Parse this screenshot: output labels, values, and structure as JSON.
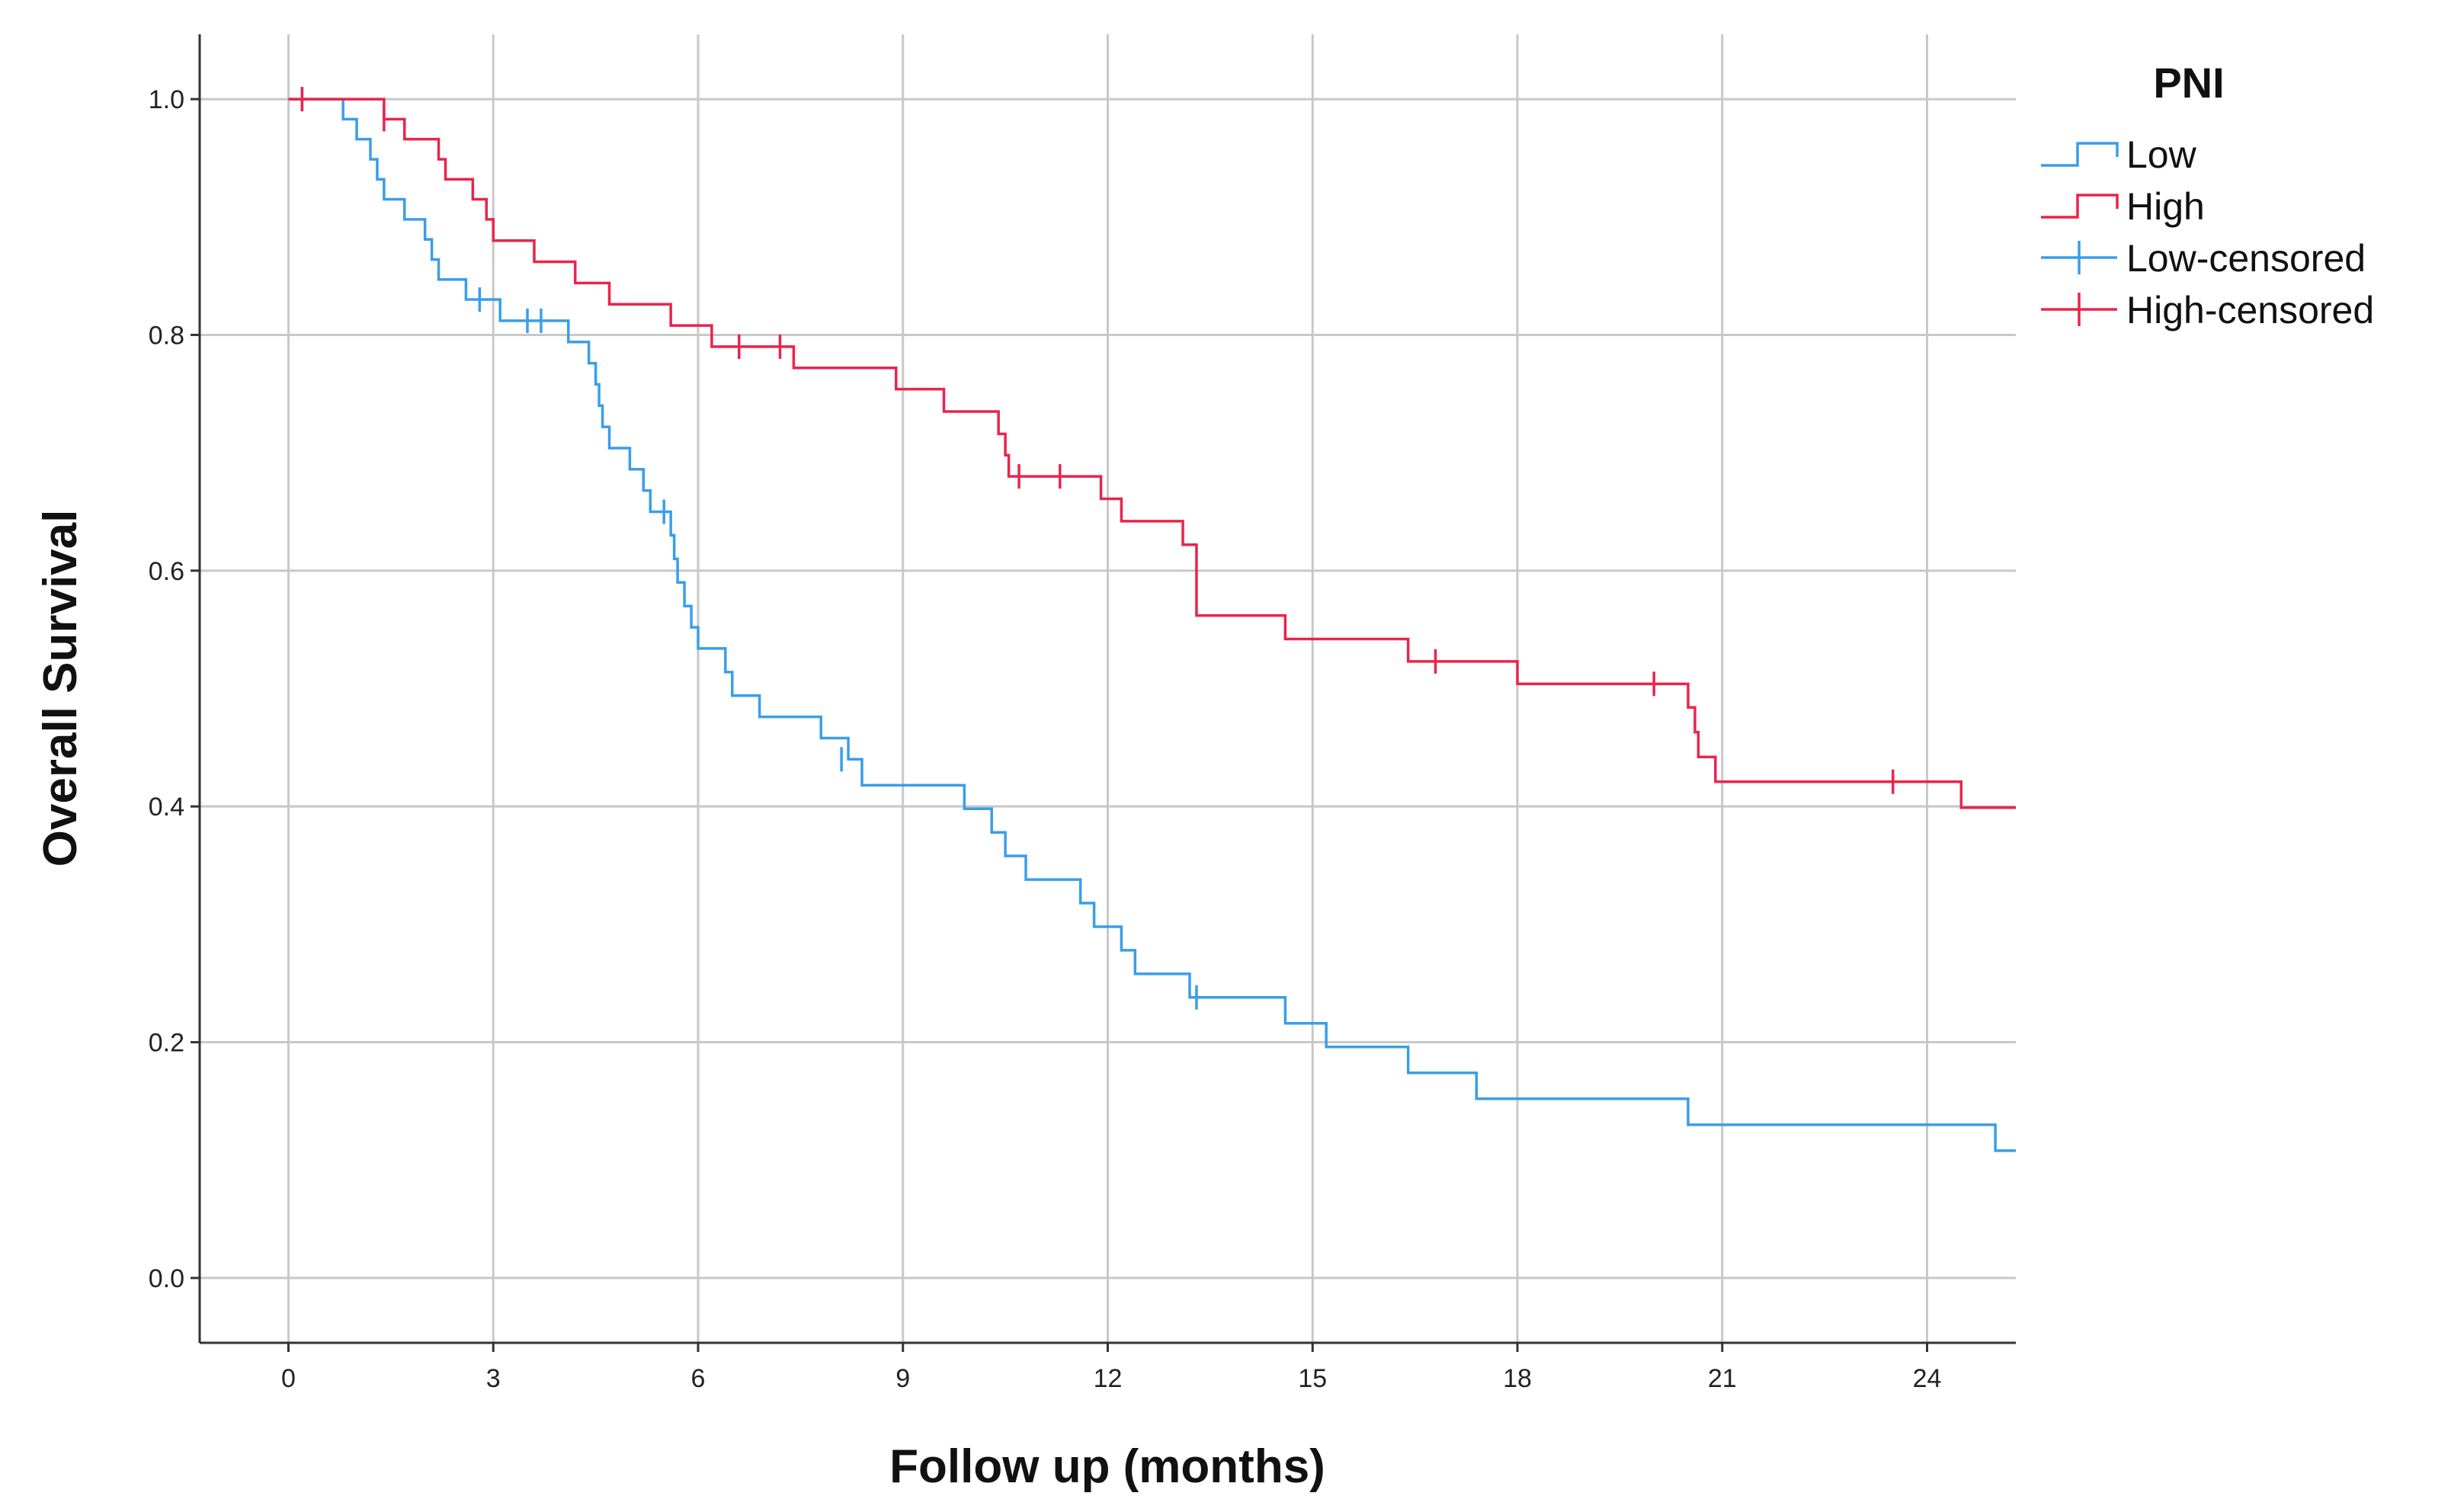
{
  "chart_data": {
    "type": "line",
    "subtype": "kaplan-meier-step",
    "xlabel": "Follow up (months)",
    "ylabel": "Overall Survival",
    "xlim": [
      -1.3,
      25.3
    ],
    "ylim": [
      -0.055,
      1.055
    ],
    "x_ticks": [
      0,
      3,
      6,
      9,
      12,
      15,
      18,
      21,
      24
    ],
    "x_tick_labels": [
      "0",
      "3",
      "6",
      "9",
      "12",
      "15",
      "18",
      "21",
      "24"
    ],
    "y_ticks": [
      0.0,
      0.2,
      0.4,
      0.6,
      0.8,
      1.0
    ],
    "y_tick_labels": [
      "0.0",
      "0.2",
      "0.4",
      "0.6",
      "0.8",
      "1.0"
    ],
    "grid": true,
    "legend": {
      "title": "PNI",
      "position": "top-right",
      "entries": [
        {
          "label": "Low",
          "kind": "step",
          "color": "#3a9ee8"
        },
        {
          "label": "High",
          "kind": "step",
          "color": "#e8254b"
        },
        {
          "label": "Low-censored",
          "kind": "censor",
          "color": "#3a9ee8"
        },
        {
          "label": "High-censored",
          "kind": "censor",
          "color": "#e8254b"
        }
      ]
    },
    "series": [
      {
        "name": "Low",
        "color": "#3a9ee8",
        "x_end": 25.3,
        "steps": [
          [
            0,
            1.0
          ],
          [
            0.8,
            0.983
          ],
          [
            1.0,
            0.966
          ],
          [
            1.2,
            0.949
          ],
          [
            1.3,
            0.932
          ],
          [
            1.4,
            0.915
          ],
          [
            1.7,
            0.898
          ],
          [
            2.0,
            0.881
          ],
          [
            2.1,
            0.864
          ],
          [
            2.2,
            0.847
          ],
          [
            2.6,
            0.83
          ],
          [
            3.1,
            0.812
          ],
          [
            4.1,
            0.794
          ],
          [
            4.4,
            0.776
          ],
          [
            4.5,
            0.758
          ],
          [
            4.55,
            0.74
          ],
          [
            4.6,
            0.722
          ],
          [
            4.7,
            0.704
          ],
          [
            5.0,
            0.686
          ],
          [
            5.2,
            0.668
          ],
          [
            5.3,
            0.65
          ],
          [
            5.6,
            0.63
          ],
          [
            5.65,
            0.61
          ],
          [
            5.7,
            0.59
          ],
          [
            5.8,
            0.57
          ],
          [
            5.9,
            0.552
          ],
          [
            6.0,
            0.534
          ],
          [
            6.4,
            0.514
          ],
          [
            6.5,
            0.494
          ],
          [
            6.9,
            0.476
          ],
          [
            7.8,
            0.458
          ],
          [
            8.2,
            0.44
          ],
          [
            8.4,
            0.418
          ],
          [
            9.9,
            0.398
          ],
          [
            10.3,
            0.378
          ],
          [
            10.5,
            0.358
          ],
          [
            10.8,
            0.338
          ],
          [
            11.6,
            0.318
          ],
          [
            11.8,
            0.298
          ],
          [
            12.2,
            0.278
          ],
          [
            12.4,
            0.258
          ],
          [
            13.2,
            0.238
          ],
          [
            14.6,
            0.216
          ],
          [
            15.2,
            0.196
          ],
          [
            16.4,
            0.174
          ],
          [
            17.4,
            0.152
          ],
          [
            20.5,
            0.13
          ],
          [
            25.0,
            0.108
          ]
        ],
        "censored": [
          [
            0.2,
            1.0
          ],
          [
            2.8,
            0.83
          ],
          [
            3.5,
            0.812
          ],
          [
            3.7,
            0.812
          ],
          [
            5.5,
            0.65
          ],
          [
            8.1,
            0.44
          ],
          [
            13.3,
            0.238
          ]
        ]
      },
      {
        "name": "High",
        "color": "#e8254b",
        "x_end": 25.3,
        "steps": [
          [
            0,
            1.0
          ],
          [
            1.4,
            0.983
          ],
          [
            1.7,
            0.966
          ],
          [
            2.2,
            0.949
          ],
          [
            2.3,
            0.932
          ],
          [
            2.7,
            0.915
          ],
          [
            2.9,
            0.898
          ],
          [
            3.0,
            0.88
          ],
          [
            3.6,
            0.862
          ],
          [
            4.2,
            0.844
          ],
          [
            4.7,
            0.826
          ],
          [
            5.6,
            0.808
          ],
          [
            6.2,
            0.79
          ],
          [
            7.4,
            0.772
          ],
          [
            8.9,
            0.754
          ],
          [
            9.6,
            0.735
          ],
          [
            10.4,
            0.716
          ],
          [
            10.5,
            0.698
          ],
          [
            10.55,
            0.68
          ],
          [
            11.9,
            0.661
          ],
          [
            12.2,
            0.642
          ],
          [
            13.1,
            0.622
          ],
          [
            13.3,
            0.562
          ],
          [
            14.6,
            0.542
          ],
          [
            16.4,
            0.523
          ],
          [
            18.0,
            0.504
          ],
          [
            20.5,
            0.484
          ],
          [
            20.6,
            0.463
          ],
          [
            20.65,
            0.442
          ],
          [
            20.9,
            0.421
          ],
          [
            24.5,
            0.399
          ]
        ],
        "censored": [
          [
            0.2,
            1.0
          ],
          [
            1.4,
            0.983
          ],
          [
            6.6,
            0.79
          ],
          [
            7.2,
            0.79
          ],
          [
            10.7,
            0.68
          ],
          [
            11.3,
            0.68
          ],
          [
            16.8,
            0.523
          ],
          [
            20.0,
            0.504
          ],
          [
            23.5,
            0.421
          ]
        ]
      }
    ]
  }
}
